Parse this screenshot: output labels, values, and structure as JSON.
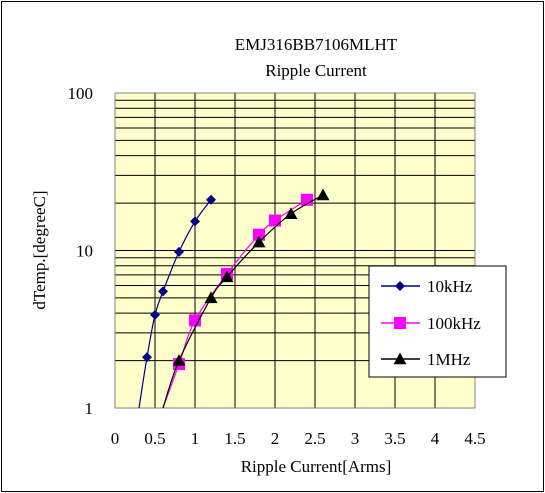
{
  "chart_data": {
    "type": "line",
    "title": "EMJ316BB7106MLHT",
    "subtitle": "Ripple Current",
    "xlabel": "Ripple Current[Arms]",
    "ylabel": "dTemp.[degreeC]",
    "xlim": [
      0,
      4.5
    ],
    "ylim": [
      1,
      100
    ],
    "yscale": "log",
    "x_ticks": [
      "0",
      "0.5",
      "1",
      "1.5",
      "2",
      "2.5",
      "3",
      "3.5",
      "4",
      "4.5"
    ],
    "y_ticks": [
      "1",
      "10",
      "100"
    ],
    "grid": true,
    "legend": "right",
    "plot_background": "#ffffcc",
    "series": [
      {
        "name": "10kHz",
        "color": "#000080",
        "marker": "diamond",
        "x": [
          0.3,
          0.4,
          0.5,
          0.6,
          0.8,
          1.0,
          1.2
        ],
        "y": [
          1.0,
          2.1,
          3.9,
          5.5,
          9.8,
          15.3,
          21.0
        ],
        "markers": [
          false,
          true,
          true,
          true,
          true,
          true,
          true
        ]
      },
      {
        "name": "100kHz",
        "color": "#ff00ff",
        "marker": "square",
        "x": [
          0.6,
          0.8,
          1.0,
          1.4,
          1.8,
          2.0,
          2.4
        ],
        "y": [
          1.0,
          1.9,
          3.6,
          7.1,
          12.6,
          15.5,
          21.0
        ],
        "markers": [
          false,
          true,
          true,
          true,
          true,
          true,
          true
        ]
      },
      {
        "name": "1MHz",
        "color": "#000000",
        "marker": "triangle",
        "x": [
          0.6,
          0.8,
          1.2,
          1.4,
          1.8,
          2.2,
          2.6
        ],
        "y": [
          1.0,
          2.0,
          5.0,
          6.8,
          11.3,
          17.1,
          22.5
        ],
        "markers": [
          false,
          true,
          true,
          true,
          true,
          true,
          true
        ]
      }
    ]
  }
}
